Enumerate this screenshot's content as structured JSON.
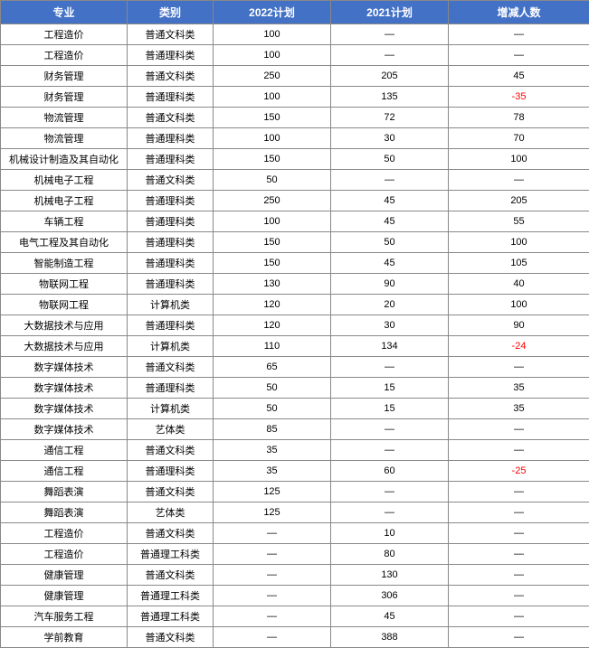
{
  "table": {
    "header_bg": "#4371c5",
    "header_fg": "#ffffff",
    "border_color": "#888888",
    "cell_bg": "#ffffff",
    "cell_fg": "#000000",
    "neg_fg": "#ff0000",
    "font_size_header": 12,
    "font_size_cell": 11,
    "columns": [
      "专业",
      "类别",
      "2022计划",
      "2021计划",
      "增减人数"
    ],
    "rows": [
      {
        "c0": "工程造价",
        "c1": "普通文科类",
        "c2": "100",
        "c3": "—",
        "c4": "—"
      },
      {
        "c0": "工程造价",
        "c1": "普通理科类",
        "c2": "100",
        "c3": "—",
        "c4": "—"
      },
      {
        "c0": "财务管理",
        "c1": "普通文科类",
        "c2": "250",
        "c3": "205",
        "c4": "45"
      },
      {
        "c0": "财务管理",
        "c1": "普通理科类",
        "c2": "100",
        "c3": "135",
        "c4": "-35",
        "neg": true
      },
      {
        "c0": "物流管理",
        "c1": "普通文科类",
        "c2": "150",
        "c3": "72",
        "c4": "78"
      },
      {
        "c0": "物流管理",
        "c1": "普通理科类",
        "c2": "100",
        "c3": "30",
        "c4": "70"
      },
      {
        "c0": "机械设计制造及其自动化",
        "c1": "普通理科类",
        "c2": "150",
        "c3": "50",
        "c4": "100"
      },
      {
        "c0": "机械电子工程",
        "c1": "普通文科类",
        "c2": "50",
        "c3": "—",
        "c4": "—"
      },
      {
        "c0": "机械电子工程",
        "c1": "普通理科类",
        "c2": "250",
        "c3": "45",
        "c4": "205"
      },
      {
        "c0": "车辆工程",
        "c1": "普通理科类",
        "c2": "100",
        "c3": "45",
        "c4": "55"
      },
      {
        "c0": "电气工程及其自动化",
        "c1": "普通理科类",
        "c2": "150",
        "c3": "50",
        "c4": "100"
      },
      {
        "c0": "智能制造工程",
        "c1": "普通理科类",
        "c2": "150",
        "c3": "45",
        "c4": "105"
      },
      {
        "c0": "物联网工程",
        "c1": "普通理科类",
        "c2": "130",
        "c3": "90",
        "c4": "40"
      },
      {
        "c0": "物联网工程",
        "c1": "计算机类",
        "c2": "120",
        "c3": "20",
        "c4": "100"
      },
      {
        "c0": "大数据技术与应用",
        "c1": "普通理科类",
        "c2": "120",
        "c3": "30",
        "c4": "90"
      },
      {
        "c0": "大数据技术与应用",
        "c1": "计算机类",
        "c2": "110",
        "c3": "134",
        "c4": "-24",
        "neg": true
      },
      {
        "c0": "数字媒体技术",
        "c1": "普通文科类",
        "c2": "65",
        "c3": "—",
        "c4": "—"
      },
      {
        "c0": "数字媒体技术",
        "c1": "普通理科类",
        "c2": "50",
        "c3": "15",
        "c4": "35"
      },
      {
        "c0": "数字媒体技术",
        "c1": "计算机类",
        "c2": "50",
        "c3": "15",
        "c4": "35"
      },
      {
        "c0": "数字媒体技术",
        "c1": "艺体类",
        "c2": "85",
        "c3": "—",
        "c4": "—"
      },
      {
        "c0": "通信工程",
        "c1": "普通文科类",
        "c2": "35",
        "c3": "—",
        "c4": "—"
      },
      {
        "c0": "通信工程",
        "c1": "普通理科类",
        "c2": "35",
        "c3": "60",
        "c4": "-25",
        "neg": true
      },
      {
        "c0": "舞蹈表演",
        "c1": "普通文科类",
        "c2": "125",
        "c3": "—",
        "c4": "—"
      },
      {
        "c0": "舞蹈表演",
        "c1": "艺体类",
        "c2": "125",
        "c3": "—",
        "c4": "—"
      },
      {
        "c0": "工程造价",
        "c1": "普通文科类",
        "c2": "—",
        "c3": "10",
        "c4": "—"
      },
      {
        "c0": "工程造价",
        "c1": "普通理工科类",
        "c2": "—",
        "c3": "80",
        "c4": "—"
      },
      {
        "c0": "健康管理",
        "c1": "普通文科类",
        "c2": "—",
        "c3": "130",
        "c4": "—"
      },
      {
        "c0": "健康管理",
        "c1": "普通理工科类",
        "c2": "—",
        "c3": "306",
        "c4": "—"
      },
      {
        "c0": "汽车服务工程",
        "c1": "普通理工科类",
        "c2": "—",
        "c3": "45",
        "c4": "—"
      },
      {
        "c0": "学前教育",
        "c1": "普通文科类",
        "c2": "—",
        "c3": "388",
        "c4": "—"
      }
    ]
  }
}
